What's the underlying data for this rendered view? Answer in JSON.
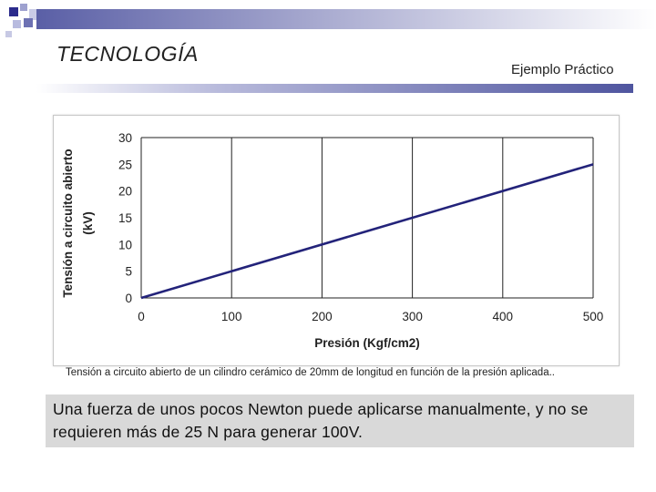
{
  "slide": {
    "title": "TECNOLOGÍA",
    "subtitle": "Ejemplo Práctico",
    "caption": "Tensión a circuito abierto de un cilindro cerámico de 20mm de longitud en función de la presión aplicada..",
    "note": "Una fuerza de unos pocos Newton puede aplicarse manualmente, y no se requieren más de 25 N para generar 100V."
  },
  "colors": {
    "accent": "#2b2b8c",
    "line": "#23237a",
    "note_bg": "#d9d9d9"
  },
  "chart_data": {
    "type": "line",
    "x": [
      0,
      500
    ],
    "series": [
      {
        "values": [
          0,
          25
        ]
      }
    ],
    "xlabel": "Presión (Kgf/cm2)",
    "ylabel_lines": [
      "Tensión a circuito abierto",
      "(kV)"
    ],
    "xlim": [
      0,
      500
    ],
    "ylim": [
      0,
      30
    ],
    "xticks": [
      "0",
      "100",
      "200",
      "300",
      "400",
      "500"
    ],
    "yticks": [
      "0",
      "5",
      "10",
      "15",
      "20",
      "25",
      "30"
    ],
    "grid": "vertical"
  }
}
